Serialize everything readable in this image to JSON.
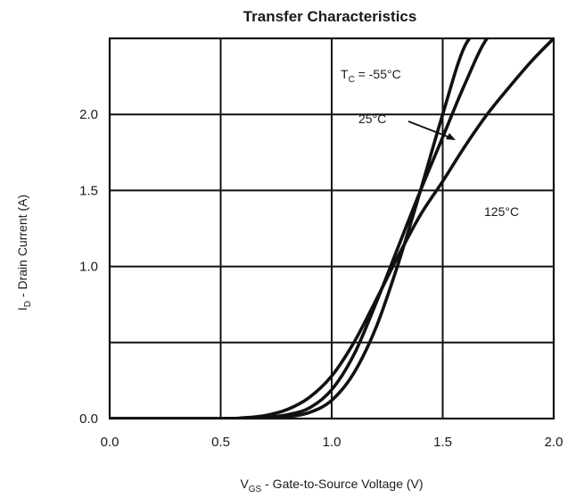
{
  "chart_data": {
    "type": "line",
    "title": "Transfer Characteristics",
    "xlabel": {
      "main": "V",
      "sub": "GS",
      "rest": " - Gate-to-Source Voltage (V)"
    },
    "ylabel": {
      "main": "I",
      "sub": "D",
      "rest": " - Drain Current (A)"
    },
    "xlim": [
      0.0,
      2.0
    ],
    "ylim": [
      0.0,
      2.5
    ],
    "xticks": [
      0.0,
      0.5,
      1.0,
      1.5,
      2.0
    ],
    "xtick_labels": [
      "0.0",
      "0.5",
      "1.0",
      "1.5",
      "2.0"
    ],
    "yticks": [
      0.0,
      0.5,
      1.0,
      1.5,
      2.0
    ],
    "ytick_labels": [
      "0.0",
      "",
      "1.0",
      "1.5",
      "2.0"
    ],
    "grid": true,
    "series": [
      {
        "name": "-55°C",
        "x": [
          0.0,
          0.5,
          0.6,
          0.7,
          0.8,
          0.9,
          1.0,
          1.1,
          1.2,
          1.3,
          1.4,
          1.5,
          1.6,
          1.7
        ],
        "y": [
          0.0,
          0.0,
          0.0,
          0.003,
          0.012,
          0.04,
          0.12,
          0.3,
          0.6,
          1.02,
          1.5,
          2.0,
          2.45,
          2.6
        ]
      },
      {
        "name": "25°C",
        "x": [
          0.0,
          0.5,
          0.6,
          0.7,
          0.8,
          0.9,
          1.0,
          1.1,
          1.2,
          1.3,
          1.4,
          1.5,
          1.6,
          1.7,
          1.8
        ],
        "y": [
          0.0,
          0.0,
          0.002,
          0.008,
          0.025,
          0.07,
          0.19,
          0.42,
          0.76,
          1.13,
          1.5,
          1.85,
          2.2,
          2.5,
          2.6
        ]
      },
      {
        "name": "125°C",
        "x": [
          0.0,
          0.5,
          0.6,
          0.7,
          0.8,
          0.9,
          1.0,
          1.1,
          1.2,
          1.3,
          1.4,
          1.5,
          1.6,
          1.7,
          1.8,
          1.9,
          2.0
        ],
        "y": [
          0.0,
          0.0,
          0.005,
          0.02,
          0.06,
          0.14,
          0.28,
          0.5,
          0.78,
          1.07,
          1.34,
          1.56,
          1.79,
          2.0,
          2.18,
          2.35,
          2.5
        ]
      }
    ],
    "annotations": {
      "tc_label": "T",
      "tc_sub": "C",
      "tc_value": " = -55°C",
      "t25": "25°C",
      "t125": "125°C"
    }
  }
}
